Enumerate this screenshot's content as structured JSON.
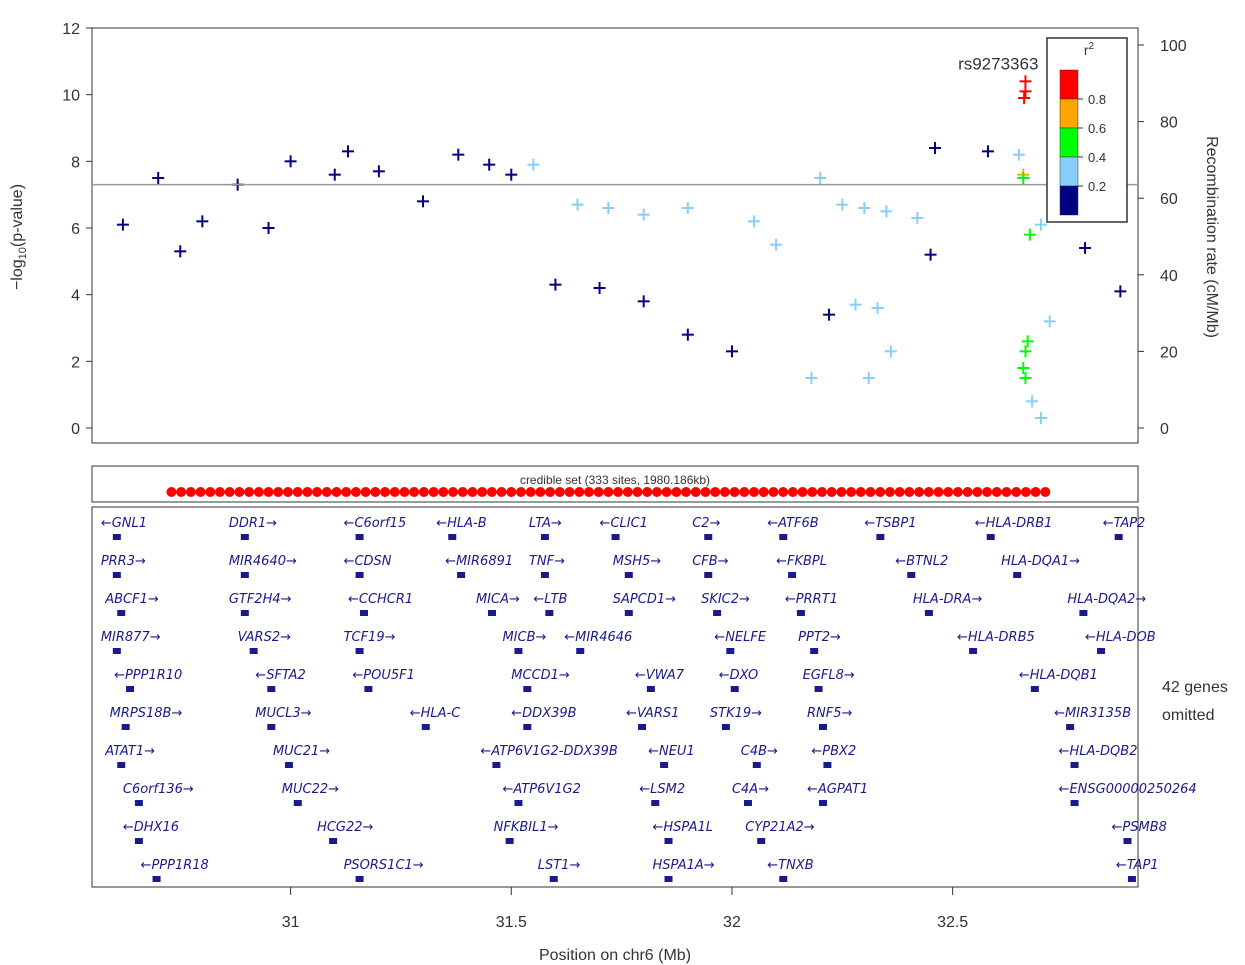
{
  "chart_data": {
    "type": "scatter",
    "title": "",
    "xlabel": "Position on chr6 (Mb)",
    "ylabel_left": "-log10(p-value)",
    "ylabel_right": "Recombination rate (cM/Mb)",
    "xlim": [
      30.55,
      32.92
    ],
    "ylim_left": [
      0,
      12
    ],
    "ylim_right": [
      0,
      100
    ],
    "x_ticks": [
      "31",
      "31.5",
      "32",
      "32.5"
    ],
    "x_tick_values": [
      31,
      31.5,
      32,
      32.5
    ],
    "y_ticks_left": [
      "0",
      "2",
      "4",
      "6",
      "8",
      "10",
      "12"
    ],
    "y_ticks_right": [
      "0",
      "20",
      "40",
      "60",
      "80",
      "100"
    ],
    "significance_line": 7.3,
    "lead_snp": {
      "label": "rs9273363",
      "x": 32.66,
      "y": 10.4
    },
    "legend": {
      "title": "r2",
      "placement": "top-right",
      "entries": [
        {
          "label": "0.8",
          "color": "#ff0000"
        },
        {
          "label": "0.6",
          "color": "#ffa500"
        },
        {
          "label": "0.4",
          "color": "#00ff00"
        },
        {
          "label": "0.2",
          "color": "#87cefa"
        },
        {
          "label": "",
          "color": "#000080"
        }
      ]
    },
    "series": [
      {
        "name": "r2 >= 0.8",
        "color": "#ff0000",
        "points": [
          [
            32.665,
            10.4
          ],
          [
            32.665,
            10.1
          ],
          [
            32.662,
            9.9
          ]
        ]
      },
      {
        "name": "0.6 <= r2 < 0.8",
        "color": "#ffa500",
        "points": [
          [
            32.66,
            7.6
          ]
        ]
      },
      {
        "name": "0.4 <= r2 < 0.6",
        "color": "#00ff00",
        "points": [
          [
            32.66,
            7.5
          ],
          [
            32.675,
            5.8
          ],
          [
            32.67,
            2.6
          ],
          [
            32.665,
            2.3
          ],
          [
            32.66,
            1.8
          ],
          [
            32.665,
            1.5
          ]
        ]
      },
      {
        "name": "0.2 <= r2 < 0.4",
        "color": "#87cefa",
        "points": [
          [
            31.55,
            7.9
          ],
          [
            31.65,
            6.7
          ],
          [
            31.72,
            6.6
          ],
          [
            31.8,
            6.4
          ],
          [
            31.9,
            6.6
          ],
          [
            32.05,
            6.2
          ],
          [
            32.1,
            5.5
          ],
          [
            32.2,
            7.5
          ],
          [
            32.25,
            6.7
          ],
          [
            32.3,
            6.6
          ],
          [
            32.35,
            6.5
          ],
          [
            32.42,
            6.3
          ],
          [
            32.28,
            3.7
          ],
          [
            32.33,
            3.6
          ],
          [
            32.36,
            2.3
          ],
          [
            32.31,
            1.5
          ],
          [
            32.18,
            1.5
          ],
          [
            32.65,
            8.2
          ],
          [
            32.7,
            6.1
          ],
          [
            32.72,
            3.2
          ],
          [
            32.68,
            0.8
          ],
          [
            32.7,
            0.3
          ]
        ]
      },
      {
        "name": "r2 < 0.2",
        "color": "#000080",
        "points": [
          [
            30.62,
            6.1
          ],
          [
            30.7,
            7.5
          ],
          [
            30.75,
            5.3
          ],
          [
            30.8,
            6.2
          ],
          [
            30.88,
            7.3
          ],
          [
            30.95,
            6.0
          ],
          [
            31.0,
            8.0
          ],
          [
            31.1,
            7.6
          ],
          [
            31.13,
            8.3
          ],
          [
            31.2,
            7.7
          ],
          [
            31.3,
            6.8
          ],
          [
            31.38,
            8.2
          ],
          [
            31.45,
            7.9
          ],
          [
            31.5,
            7.6
          ],
          [
            31.6,
            4.3
          ],
          [
            31.7,
            4.2
          ],
          [
            31.8,
            3.8
          ],
          [
            31.9,
            2.8
          ],
          [
            32.0,
            2.3
          ],
          [
            32.22,
            3.4
          ],
          [
            32.45,
            5.2
          ],
          [
            32.46,
            8.4
          ],
          [
            32.58,
            8.3
          ],
          [
            32.8,
            5.4
          ],
          [
            32.88,
            4.1
          ]
        ]
      }
    ],
    "credible_set": {
      "label": "credible set (333 sites, 1980.186kb)",
      "x_start": 30.73,
      "x_end": 32.71
    },
    "genes_note": [
      "42 genes",
      "omitted"
    ],
    "genes": [
      {
        "row": 0,
        "name": "GNL1",
        "dir": "left",
        "x": 30.57
      },
      {
        "row": 0,
        "name": "DDR1",
        "dir": "right",
        "x": 30.86
      },
      {
        "row": 0,
        "name": "C6orf15",
        "dir": "left",
        "x": 31.12
      },
      {
        "row": 0,
        "name": "HLA-B",
        "dir": "left",
        "x": 31.33
      },
      {
        "row": 0,
        "name": "LTA",
        "dir": "right",
        "x": 31.54
      },
      {
        "row": 0,
        "name": "CLIC1",
        "dir": "left",
        "x": 31.7
      },
      {
        "row": 0,
        "name": "C2",
        "dir": "right",
        "x": 31.91
      },
      {
        "row": 0,
        "name": "ATF6B",
        "dir": "left",
        "x": 32.08
      },
      {
        "row": 0,
        "name": "TSBP1",
        "dir": "left",
        "x": 32.3
      },
      {
        "row": 0,
        "name": "HLA-DRB1",
        "dir": "left",
        "x": 32.55
      },
      {
        "row": 0,
        "name": "TAP2",
        "dir": "left",
        "x": 32.84
      },
      {
        "row": 1,
        "name": "PRR3",
        "dir": "right",
        "x": 30.57
      },
      {
        "row": 1,
        "name": "MIR4640",
        "dir": "right",
        "x": 30.86
      },
      {
        "row": 1,
        "name": "CDSN",
        "dir": "left",
        "x": 31.12
      },
      {
        "row": 1,
        "name": "MIR6891",
        "dir": "left",
        "x": 31.35
      },
      {
        "row": 1,
        "name": "TNF",
        "dir": "right",
        "x": 31.54
      },
      {
        "row": 1,
        "name": "MSH5",
        "dir": "right",
        "x": 31.73
      },
      {
        "row": 1,
        "name": "CFB",
        "dir": "right",
        "x": 31.91
      },
      {
        "row": 1,
        "name": "FKBPL",
        "dir": "left",
        "x": 32.1
      },
      {
        "row": 1,
        "name": "BTNL2",
        "dir": "left",
        "x": 32.37
      },
      {
        "row": 1,
        "name": "HLA-DQA1",
        "dir": "right",
        "x": 32.61
      },
      {
        "row": 2,
        "name": "ABCF1",
        "dir": "right",
        "x": 30.58
      },
      {
        "row": 2,
        "name": "GTF2H4",
        "dir": "right",
        "x": 30.86
      },
      {
        "row": 2,
        "name": "CCHCR1",
        "dir": "left",
        "x": 31.13
      },
      {
        "row": 2,
        "name": "MICA",
        "dir": "right",
        "x": 31.42
      },
      {
        "row": 2,
        "name": "LTB",
        "dir": "left",
        "x": 31.55
      },
      {
        "row": 2,
        "name": "SAPCD1",
        "dir": "right",
        "x": 31.73
      },
      {
        "row": 2,
        "name": "SKIC2",
        "dir": "right",
        "x": 31.93
      },
      {
        "row": 2,
        "name": "PRRT1",
        "dir": "left",
        "x": 32.12
      },
      {
        "row": 2,
        "name": "HLA-DRA",
        "dir": "right",
        "x": 32.41
      },
      {
        "row": 2,
        "name": "HLA-DQA2",
        "dir": "right",
        "x": 32.76
      },
      {
        "row": 3,
        "name": "MIR877",
        "dir": "right",
        "x": 30.57
      },
      {
        "row": 3,
        "name": "VARS2",
        "dir": "right",
        "x": 30.88
      },
      {
        "row": 3,
        "name": "TCF19",
        "dir": "right",
        "x": 31.12
      },
      {
        "row": 3,
        "name": "MICB",
        "dir": "right",
        "x": 31.48
      },
      {
        "row": 3,
        "name": "MIR4646",
        "dir": "left",
        "x": 31.62
      },
      {
        "row": 3,
        "name": "NELFE",
        "dir": "left",
        "x": 31.96
      },
      {
        "row": 3,
        "name": "PPT2",
        "dir": "right",
        "x": 32.15
      },
      {
        "row": 3,
        "name": "HLA-DRB5",
        "dir": "left",
        "x": 32.51
      },
      {
        "row": 3,
        "name": "HLA-DOB",
        "dir": "left",
        "x": 32.8
      },
      {
        "row": 4,
        "name": "PPP1R10",
        "dir": "left",
        "x": 30.6
      },
      {
        "row": 4,
        "name": "SFTA2",
        "dir": "left",
        "x": 30.92
      },
      {
        "row": 4,
        "name": "POU5F1",
        "dir": "left",
        "x": 31.14
      },
      {
        "row": 4,
        "name": "MCCD1",
        "dir": "right",
        "x": 31.5
      },
      {
        "row": 4,
        "name": "VWA7",
        "dir": "left",
        "x": 31.78
      },
      {
        "row": 4,
        "name": "DXO",
        "dir": "left",
        "x": 31.97
      },
      {
        "row": 4,
        "name": "EGFL8",
        "dir": "right",
        "x": 32.16
      },
      {
        "row": 4,
        "name": "HLA-DQB1",
        "dir": "left",
        "x": 32.65
      },
      {
        "row": 5,
        "name": "MRPS18B",
        "dir": "right",
        "x": 30.59
      },
      {
        "row": 5,
        "name": "MUCL3",
        "dir": "right",
        "x": 30.92
      },
      {
        "row": 5,
        "name": "HLA-C",
        "dir": "left",
        "x": 31.27
      },
      {
        "row": 5,
        "name": "DDX39B",
        "dir": "left",
        "x": 31.5
      },
      {
        "row": 5,
        "name": "VARS1",
        "dir": "left",
        "x": 31.76
      },
      {
        "row": 5,
        "name": "STK19",
        "dir": "right",
        "x": 31.95
      },
      {
        "row": 5,
        "name": "RNF5",
        "dir": "right",
        "x": 32.17
      },
      {
        "row": 5,
        "name": "MIR3135B",
        "dir": "left",
        "x": 32.73
      },
      {
        "row": 6,
        "name": "ATAT1",
        "dir": "right",
        "x": 30.58
      },
      {
        "row": 6,
        "name": "MUC21",
        "dir": "right",
        "x": 30.96
      },
      {
        "row": 6,
        "name": "ATP6V1G2-DDX39B",
        "dir": "left",
        "x": 31.43
      },
      {
        "row": 6,
        "name": "NEU1",
        "dir": "left",
        "x": 31.81
      },
      {
        "row": 6,
        "name": "C4B",
        "dir": "right",
        "x": 32.02
      },
      {
        "row": 6,
        "name": "PBX2",
        "dir": "left",
        "x": 32.18
      },
      {
        "row": 6,
        "name": "HLA-DQB2",
        "dir": "left",
        "x": 32.74
      },
      {
        "row": 7,
        "name": "C6orf136",
        "dir": "right",
        "x": 30.62
      },
      {
        "row": 7,
        "name": "MUC22",
        "dir": "right",
        "x": 30.98
      },
      {
        "row": 7,
        "name": "ATP6V1G2",
        "dir": "left",
        "x": 31.48
      },
      {
        "row": 7,
        "name": "LSM2",
        "dir": "left",
        "x": 31.79
      },
      {
        "row": 7,
        "name": "C4A",
        "dir": "right",
        "x": 32.0
      },
      {
        "row": 7,
        "name": "AGPAT1",
        "dir": "left",
        "x": 32.17
      },
      {
        "row": 7,
        "name": "ENSG00000250264",
        "dir": "left",
        "x": 32.74
      },
      {
        "row": 8,
        "name": "DHX16",
        "dir": "left",
        "x": 30.62
      },
      {
        "row": 8,
        "name": "HCG22",
        "dir": "right",
        "x": 31.06
      },
      {
        "row": 8,
        "name": "NFKBIL1",
        "dir": "right",
        "x": 31.46
      },
      {
        "row": 8,
        "name": "HSPA1L",
        "dir": "left",
        "x": 31.82
      },
      {
        "row": 8,
        "name": "CYP21A2",
        "dir": "right",
        "x": 32.03
      },
      {
        "row": 8,
        "name": "PSMB8",
        "dir": "left",
        "x": 32.86
      },
      {
        "row": 9,
        "name": "PPP1R18",
        "dir": "left",
        "x": 30.66
      },
      {
        "row": 9,
        "name": "PSORS1C1",
        "dir": "right",
        "x": 31.12
      },
      {
        "row": 9,
        "name": "LST1",
        "dir": "right",
        "x": 31.56
      },
      {
        "row": 9,
        "name": "HSPA1A",
        "dir": "right",
        "x": 31.82
      },
      {
        "row": 9,
        "name": "TNXB",
        "dir": "left",
        "x": 32.08
      },
      {
        "row": 9,
        "name": "TAP1",
        "dir": "left",
        "x": 32.87
      }
    ]
  }
}
